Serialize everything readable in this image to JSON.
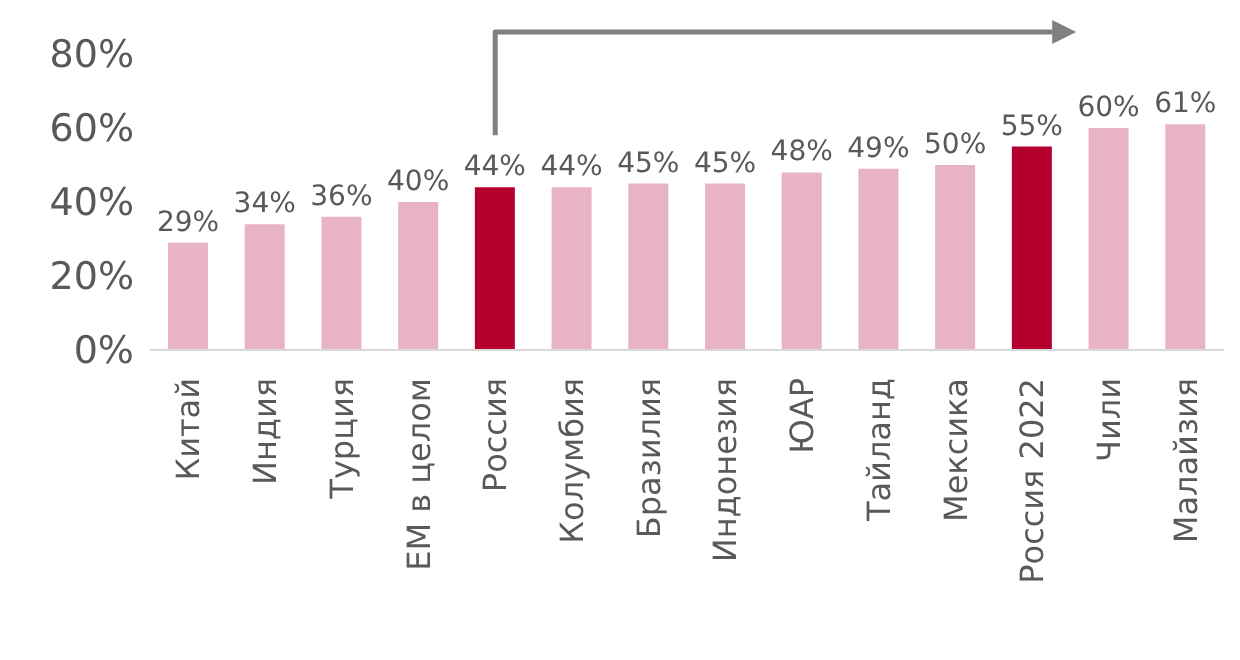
{
  "chart_data": {
    "type": "bar",
    "categories": [
      "Китай",
      "Индия",
      "Турция",
      "ЕМ в целом",
      "Россия",
      "Колумбия",
      "Бразилия",
      "Индонезия",
      "ЮАР",
      "Тайланд",
      "Мексика",
      "Россия 2022",
      "Чили",
      "Малайзия"
    ],
    "values": [
      29,
      34,
      36,
      40,
      44,
      44,
      45,
      45,
      48,
      49,
      50,
      55,
      60,
      61
    ],
    "value_labels": [
      "29%",
      "34%",
      "36%",
      "40%",
      "44%",
      "44%",
      "45%",
      "45%",
      "48%",
      "49%",
      "50%",
      "55%",
      "60%",
      "61%"
    ],
    "colors": [
      "#e8b4c3",
      "#e8b4c3",
      "#e8b4c3",
      "#e8b4c3",
      "#b5002f",
      "#e8b4c3",
      "#e8b4c3",
      "#e8b4c3",
      "#e8b4c3",
      "#e8b4c3",
      "#e8b4c3",
      "#b5002f",
      "#e8b4c3",
      "#e8b4c3"
    ],
    "ylim": [
      0,
      80
    ],
    "yticks": [
      {
        "value": 0,
        "label": "0%"
      },
      {
        "value": 20,
        "label": "20%"
      },
      {
        "value": 40,
        "label": "40%"
      },
      {
        "value": 60,
        "label": "60%"
      },
      {
        "value": 80,
        "label": "80%"
      }
    ],
    "grid": false
  }
}
